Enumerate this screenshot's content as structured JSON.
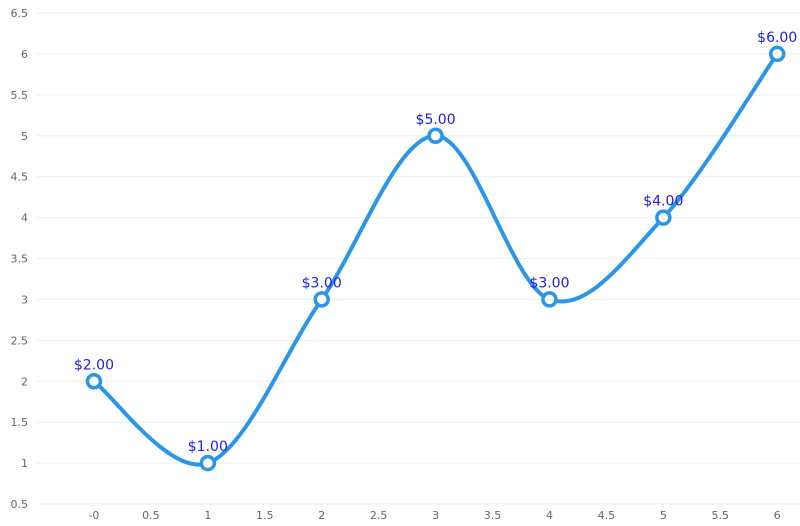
{
  "chart_data": {
    "type": "line",
    "smooth": true,
    "x": [
      0,
      1,
      2,
      3,
      4,
      5,
      6
    ],
    "series": [
      {
        "values": [
          2,
          1,
          3,
          5,
          3,
          4,
          6
        ],
        "labels": [
          "$2.00",
          "$1.00",
          "$3.00",
          "$5.00",
          "$3.00",
          "$4.00",
          "$6.00"
        ],
        "color": "#2b96e8"
      }
    ],
    "xlim": [
      -0.5,
      6.2
    ],
    "ylim": [
      0.5,
      6.5
    ],
    "x_ticks": [
      0,
      0.5,
      1,
      1.5,
      2,
      2.5,
      3,
      3.5,
      4,
      4.5,
      5,
      5.5,
      6
    ],
    "x_tick_labels": [
      "-0",
      "0.5",
      "1",
      "1.5",
      "2",
      "2.5",
      "3",
      "3.5",
      "4",
      "4.5",
      "5",
      "5.5",
      "6"
    ],
    "y_ticks": [
      0.5,
      1,
      1.5,
      2,
      2.5,
      3,
      3.5,
      4,
      4.5,
      5,
      5.5,
      6,
      6.5
    ],
    "y_tick_labels": [
      "0.5",
      "1",
      "1.5",
      "2",
      "2.5",
      "3",
      "3.5",
      "4",
      "4.5",
      "5",
      "5.5",
      "6",
      "6.5"
    ],
    "grid": "horizontal",
    "legend": "none"
  }
}
